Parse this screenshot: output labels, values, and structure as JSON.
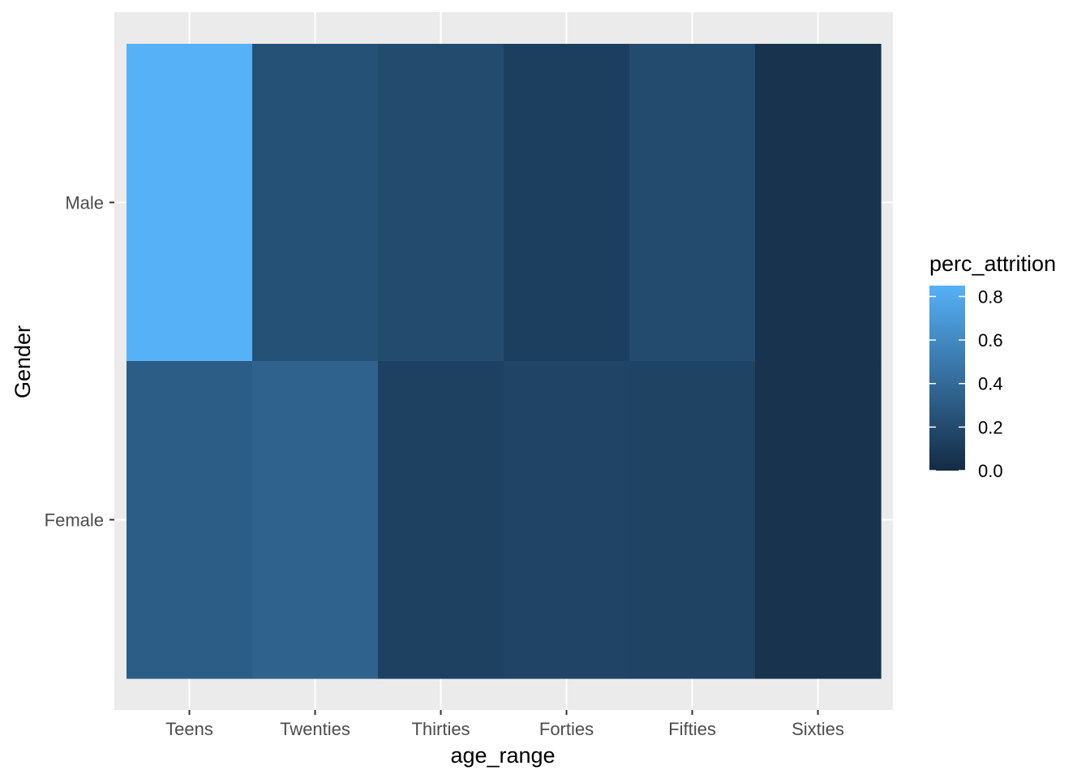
{
  "chart_data": {
    "type": "heatmap",
    "title": "",
    "xlabel": "age_range",
    "ylabel": "Gender",
    "x_categories": [
      "Teens",
      "Twenties",
      "Thirties",
      "Forties",
      "Fifties",
      "Sixties"
    ],
    "y_categories": [
      "Female",
      "Male"
    ],
    "cells": [
      {
        "x": "Teens",
        "y": "Male",
        "value": 0.85
      },
      {
        "x": "Twenties",
        "y": "Male",
        "value": 0.24
      },
      {
        "x": "Thirties",
        "y": "Male",
        "value": 0.2
      },
      {
        "x": "Forties",
        "y": "Male",
        "value": 0.13
      },
      {
        "x": "Fifties",
        "y": "Male",
        "value": 0.2
      },
      {
        "x": "Sixties",
        "y": "Male",
        "value": 0.05
      },
      {
        "x": "Teens",
        "y": "Female",
        "value": 0.32
      },
      {
        "x": "Twenties",
        "y": "Female",
        "value": 0.35
      },
      {
        "x": "Thirties",
        "y": "Female",
        "value": 0.14
      },
      {
        "x": "Forties",
        "y": "Female",
        "value": 0.16
      },
      {
        "x": "Fifties",
        "y": "Female",
        "value": 0.15
      },
      {
        "x": "Sixties",
        "y": "Female",
        "value": 0.05
      }
    ],
    "legend": {
      "title": "perc_attrition",
      "breaks": [
        0.0,
        0.2,
        0.4,
        0.6,
        0.8
      ],
      "break_labels": [
        "0.0",
        "0.2",
        "0.4",
        "0.6",
        "0.8"
      ],
      "range": [
        0.0,
        0.85
      ],
      "low_color": "#132B43",
      "high_color": "#56B1F7",
      "placement": "right"
    },
    "panel_background": "#EBEBEB",
    "grid_color": "#FFFFFF",
    "grid": true
  }
}
